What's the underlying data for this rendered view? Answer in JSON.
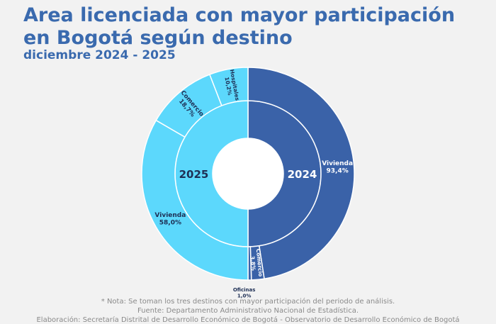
{
  "header": {
    "title": "Area licenciada con mayor participación en Bogotá según destino",
    "subtitle": "diciembre 2024 - 2025"
  },
  "footer": {
    "note": "* Nota: Se toman los tres destinos con mayor participación del periodo de análisis.",
    "source": "Fuente: Departamento Administrativo Nacional de Estadística.",
    "credit": "Elaboración: Secretaría Distrital de Desarrollo Económico de Bogotá - Observatorio de Desarrollo Económico de Bogotá"
  },
  "chart_data": {
    "type": "pie",
    "variant": "sunburst",
    "center_labels": [
      "2024",
      "2025"
    ],
    "years": [
      {
        "name": "2024",
        "value": 50,
        "color": "#3a62a8",
        "slices": [
          {
            "name": "Vivienda",
            "value": 93.4,
            "label": "93,4%",
            "color": "#3a62a8"
          },
          {
            "name": "Comercio",
            "value": 3.8,
            "label": "3,8%",
            "color": "#3a62a8"
          },
          {
            "name": "Oficinas",
            "value": 1.0,
            "label": "1,0%",
            "color": "#3a62a8"
          }
        ]
      },
      {
        "name": "2025",
        "value": 50,
        "color": "#5cd8fc",
        "slices": [
          {
            "name": "Vivienda",
            "value": 58.0,
            "label": "58,0%",
            "color": "#5cd8fc"
          },
          {
            "name": "Comercio",
            "value": 18.7,
            "label": "18,7%",
            "color": "#5cd8fc"
          },
          {
            "name": "Hospitales",
            "value": 10.2,
            "label": "10,2%",
            "color": "#5cd8fc"
          }
        ]
      }
    ],
    "colors": {
      "y2024": "#3a62a8",
      "y2025": "#5cd8fc",
      "text_dark": "#1e2f55"
    }
  }
}
